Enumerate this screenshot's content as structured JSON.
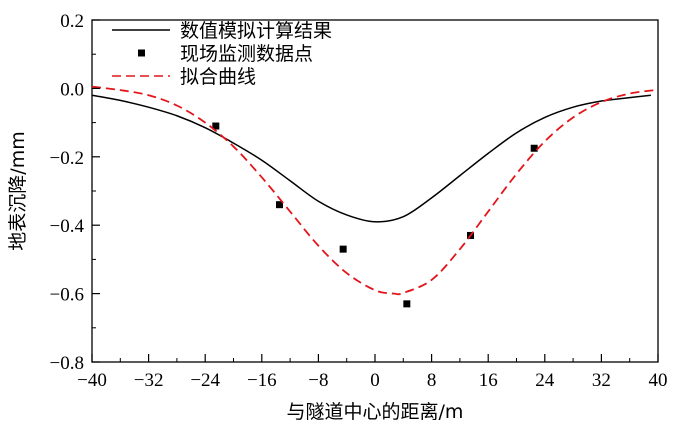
{
  "chart_data": {
    "type": "line",
    "xlabel": "与隧道中心的距离/m",
    "ylabel": "地表沉降/mm",
    "xlim": [
      -40,
      40
    ],
    "ylim": [
      -0.8,
      0.2
    ],
    "xticks": [
      -40,
      -32,
      -24,
      -16,
      -8,
      0,
      8,
      16,
      24,
      32,
      40
    ],
    "yticks": [
      0.2,
      0.0,
      -0.2,
      -0.4,
      -0.6,
      -0.8
    ],
    "xtick_labels": [
      "−40",
      "−32",
      "−24",
      "−16",
      "−8",
      "0",
      "8",
      "16",
      "24",
      "32",
      "40"
    ],
    "ytick_labels": [
      "0.2",
      "0.0",
      "−0.2",
      "−0.4",
      "−0.6",
      "−0.8"
    ],
    "grid": false,
    "legend_position": "top-left",
    "series": [
      {
        "name": "数值模拟计算结果",
        "style": "solid",
        "color": "#000000",
        "x": [
          -40,
          -36,
          -32,
          -28,
          -24,
          -20,
          -16,
          -12,
          -8,
          -4,
          0,
          4,
          8,
          12,
          16,
          20,
          24,
          28,
          32,
          36,
          39
        ],
        "y": [
          -0.02,
          -0.035,
          -0.055,
          -0.08,
          -0.115,
          -0.16,
          -0.21,
          -0.27,
          -0.33,
          -0.37,
          -0.39,
          -0.375,
          -0.32,
          -0.255,
          -0.19,
          -0.13,
          -0.085,
          -0.055,
          -0.037,
          -0.027,
          -0.02
        ]
      },
      {
        "name": "现场监测数据点",
        "style": "marker",
        "color": "#000000",
        "x": [
          -22.5,
          -13.5,
          -4.5,
          4.5,
          13.5,
          22.5
        ],
        "y": [
          -0.11,
          -0.34,
          -0.47,
          -0.63,
          -0.43,
          -0.175
        ]
      },
      {
        "name": "拟合曲线",
        "style": "dashed",
        "color": "#e3151a",
        "x": [
          -40,
          -36,
          -32,
          -28,
          -24,
          -20,
          -16,
          -12,
          -8,
          -4,
          0,
          2.7,
          4,
          8,
          12,
          16,
          20,
          24,
          28,
          32,
          36,
          40
        ],
        "y": [
          0.005,
          -0.005,
          -0.02,
          -0.05,
          -0.1,
          -0.17,
          -0.26,
          -0.36,
          -0.46,
          -0.54,
          -0.59,
          -0.6,
          -0.598,
          -0.56,
          -0.47,
          -0.36,
          -0.25,
          -0.155,
          -0.085,
          -0.04,
          -0.015,
          -0.004
        ]
      }
    ]
  }
}
